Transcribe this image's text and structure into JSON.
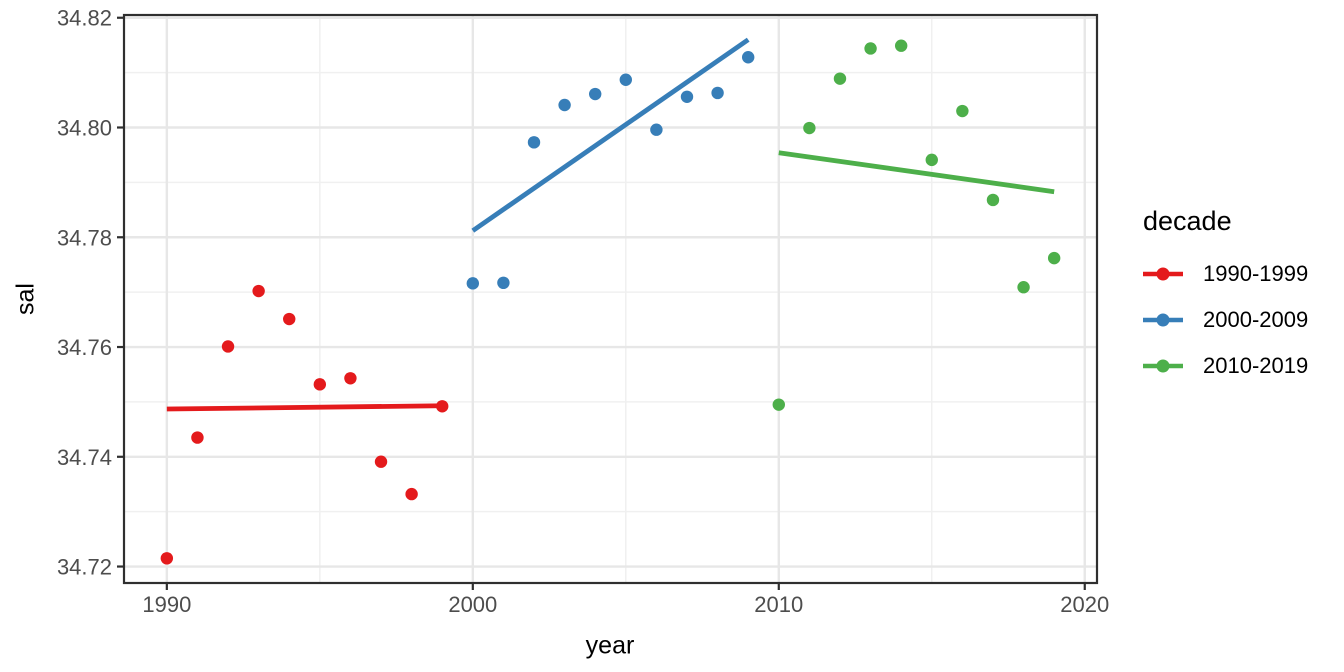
{
  "chart_data": {
    "type": "scatter",
    "title": "",
    "xlabel": "year",
    "ylabel": "sal",
    "legend_title": "decade",
    "legend_position": "right",
    "grid": true,
    "xlim": [
      1988.6,
      2020.4
    ],
    "ylim": [
      34.717,
      34.8205
    ],
    "xticks": {
      "values": [
        1990,
        2000,
        2010,
        2020
      ],
      "labels": [
        "1990",
        "2000",
        "2010",
        "2020"
      ]
    },
    "yticks": {
      "values": [
        34.72,
        34.74,
        34.76,
        34.78,
        34.8,
        34.82
      ],
      "labels": [
        "34.72",
        "34.74",
        "34.76",
        "34.78",
        "34.80",
        "34.82"
      ]
    },
    "xticks_minor": [
      1995,
      2005,
      2015
    ],
    "yticks_minor": [
      34.73,
      34.75,
      34.77,
      34.79,
      34.81
    ],
    "colors": {
      "grid_major": "#E7E7E7",
      "grid_minor": "#F0F0F0",
      "panel_border": "#2F2F2F",
      "tick_mark": "#2F2F2F",
      "tick_label": "#4D4D4D",
      "axis_title": "#000000"
    },
    "series": [
      {
        "name": "1990-1999",
        "color": "#E41A1C",
        "x": [
          1990,
          1991,
          1992,
          1993,
          1994,
          1995,
          1996,
          1997,
          1998,
          1999
        ],
        "y": [
          34.7215,
          34.7435,
          34.7601,
          34.7702,
          34.7651,
          34.7532,
          34.7543,
          34.7391,
          34.7332,
          34.7492
        ],
        "trend": {
          "x": [
            1990,
            1999
          ],
          "y": [
            34.7487,
            34.7493
          ]
        }
      },
      {
        "name": "2000-2009",
        "color": "#377EB8",
        "x": [
          2000,
          2001,
          2002,
          2003,
          2004,
          2005,
          2006,
          2007,
          2008,
          2009
        ],
        "y": [
          34.7716,
          34.7717,
          34.7973,
          34.8041,
          34.8061,
          34.8087,
          34.7996,
          34.8056,
          34.8063,
          34.8128
        ],
        "trend": {
          "x": [
            2000,
            2009
          ],
          "y": [
            34.7812,
            34.816
          ]
        }
      },
      {
        "name": "2010-2019",
        "color": "#4DAF4A",
        "x": [
          2010,
          2011,
          2012,
          2013,
          2014,
          2015,
          2016,
          2017,
          2018,
          2019
        ],
        "y": [
          34.7495,
          34.7999,
          34.8089,
          34.8144,
          34.8149,
          34.7941,
          34.803,
          34.7868,
          34.7709,
          34.7762
        ],
        "trend": {
          "x": [
            2010,
            2019
          ],
          "y": [
            34.7954,
            34.7883
          ]
        }
      }
    ]
  }
}
